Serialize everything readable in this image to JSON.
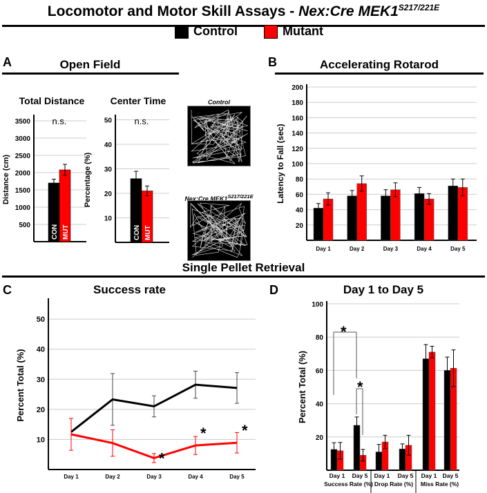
{
  "figure": {
    "title": "Locomotor and Motor Skill Assays - ",
    "title_gene": "Nex:Cre  MEK1",
    "title_sup": "S217/221E",
    "legend": [
      {
        "label": "Control",
        "color": "#000000"
      },
      {
        "label": "Mutant",
        "color": "#ff0000"
      }
    ],
    "panel_a": {
      "letter": "A",
      "heading": "Open Field",
      "trace_control": "Control",
      "trace_mutant": "Nex:Cre  MEK1",
      "trace_mutant_sup": "S217/221E"
    },
    "panel_b": {
      "letter": "B",
      "heading": "Accelerating Rotarod"
    },
    "section": "Single Pellet Retrieval",
    "panel_c": {
      "letter": "C",
      "heading": "Success rate"
    },
    "panel_d": {
      "letter": "D",
      "heading": "Day 1 to Day 5"
    }
  },
  "chart_data": [
    {
      "id": "total_distance",
      "type": "bar",
      "title": "Total Distance",
      "ylabel": "Distance (cm)",
      "ylim": [
        0,
        3600
      ],
      "yticks": [
        500,
        1000,
        1500,
        2000,
        2500,
        3000,
        3500
      ],
      "categories": [
        "CON",
        "MUT"
      ],
      "values": [
        1700,
        2080
      ],
      "errors": [
        110,
        160
      ],
      "colors": [
        "#000000",
        "#ff0000"
      ],
      "annotation": "n.s."
    },
    {
      "id": "center_time",
      "type": "bar",
      "title": "Center Time",
      "ylabel": "Percentage (%)",
      "ylim": [
        0,
        51
      ],
      "yticks": [
        10,
        20,
        30,
        40,
        50
      ],
      "categories": [
        "CON",
        "MUT"
      ],
      "values": [
        26,
        21
      ],
      "errors": [
        3,
        2
      ],
      "colors": [
        "#000000",
        "#ff0000"
      ],
      "annotation": "n.s."
    },
    {
      "id": "rotarod",
      "type": "bar",
      "title": "Accelerating Rotarod",
      "ylabel": "Latency to Fall (sec)",
      "ylim": [
        0,
        200
      ],
      "yticks": [
        20,
        40,
        60,
        80,
        100,
        120,
        140,
        160,
        180,
        200
      ],
      "categories": [
        "Day 1",
        "Day 2",
        "Day 3",
        "Day 4",
        "Day 5"
      ],
      "series": [
        {
          "name": "Control",
          "values": [
            42,
            58,
            58,
            61,
            71
          ],
          "errors": [
            6,
            7,
            8,
            8,
            9
          ]
        },
        {
          "name": "Mutant",
          "values": [
            54,
            74,
            66,
            54,
            69
          ],
          "errors": [
            8,
            10,
            9,
            7,
            11
          ]
        }
      ]
    },
    {
      "id": "success_rate",
      "type": "line",
      "title": "Success rate",
      "ylabel": "Percent Total (%)",
      "ylim": [
        0,
        56
      ],
      "yticks": [
        10,
        20,
        30,
        40,
        50
      ],
      "categories": [
        "Day 1",
        "Day 2",
        "Day 3",
        "Day 4",
        "Day 5"
      ],
      "series": [
        {
          "name": "Control",
          "values": [
            12.5,
            23.3,
            21,
            28.2,
            27.1
          ],
          "errors": [
            0,
            8.6,
            3.5,
            4.5,
            5.1
          ]
        },
        {
          "name": "Mutant",
          "values": [
            11.7,
            8.8,
            3.8,
            8,
            8.9
          ],
          "errors": [
            5.3,
            4.4,
            1.5,
            3,
            3.4
          ]
        }
      ],
      "significance": [
        "",
        "",
        "*",
        "*",
        "*"
      ]
    },
    {
      "id": "day1_day5",
      "type": "bar",
      "title": "Day 1 to Day 5",
      "ylabel": "Percent Total (%)",
      "ylim": [
        0,
        100
      ],
      "yticks": [
        20,
        40,
        60,
        80,
        100
      ],
      "categories": [
        "Day 1",
        "Day 5",
        "Day 1",
        "Day 5",
        "Day 1",
        "Day 5"
      ],
      "groups": [
        "Success Rate (%)",
        "Drop Rate (%)",
        "Miss Rate (%)"
      ],
      "series": [
        {
          "name": "Control",
          "values": [
            12.5,
            27,
            11,
            12.8,
            67,
            60
          ],
          "errors": [
            4,
            5,
            4.5,
            3,
            8.5,
            8
          ]
        },
        {
          "name": "Mutant",
          "values": [
            11.7,
            9,
            17,
            15,
            71,
            61.3
          ],
          "errors": [
            5,
            3.5,
            4,
            6,
            3.5,
            11
          ]
        }
      ],
      "significance": "*"
    }
  ]
}
